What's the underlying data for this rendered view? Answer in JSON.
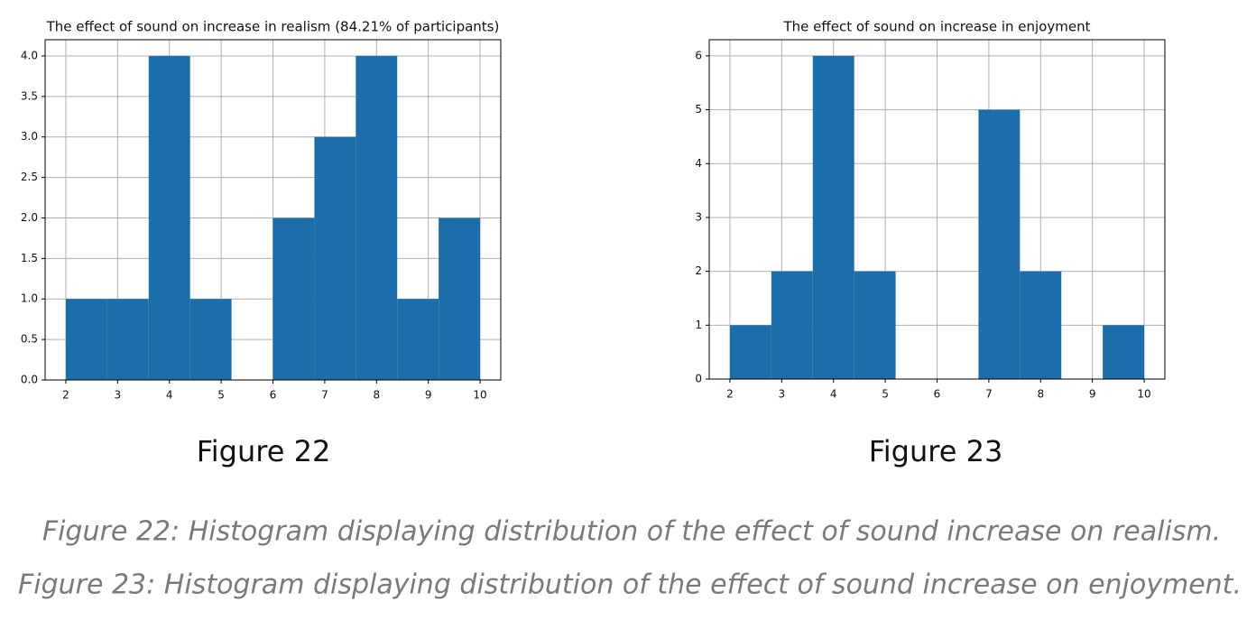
{
  "chart_data": [
    {
      "type": "histogram",
      "title": "The effect of sound on increase in realism (84.21% of participants)",
      "bins": [
        2,
        2.8,
        3.6,
        4.4,
        5.2,
        6.0,
        6.8,
        7.6,
        8.4,
        9.2,
        10
      ],
      "values": [
        1,
        1,
        4,
        1,
        0,
        2,
        3,
        4,
        1,
        2
      ],
      "color": "#1b6ea9",
      "xlim": [
        1.6,
        10.4
      ],
      "xticks": [
        2,
        3,
        4,
        5,
        6,
        7,
        8,
        9,
        10
      ],
      "ylim": [
        0,
        4.2
      ],
      "yticks": [
        {
          "value": 0,
          "label": "0.0"
        },
        {
          "value": 0.5,
          "label": "0.5"
        },
        {
          "value": 1,
          "label": "1.0"
        },
        {
          "value": 1.5,
          "label": "1.5"
        },
        {
          "value": 2,
          "label": "2.0"
        },
        {
          "value": 2.5,
          "label": "2.5"
        },
        {
          "value": 3,
          "label": "3.0"
        },
        {
          "value": 3.5,
          "label": "3.5"
        },
        {
          "value": 4,
          "label": "4.0"
        }
      ],
      "grid": true
    },
    {
      "type": "histogram",
      "title": "The effect of sound on increase in enjoyment",
      "bins": [
        2,
        2.8,
        3.6,
        4.4,
        5.2,
        6.0,
        6.8,
        7.6,
        8.4,
        9.2,
        10
      ],
      "values": [
        1,
        2,
        6,
        2,
        0,
        0,
        5,
        2,
        0,
        1
      ],
      "color": "#1b6ea9",
      "xlim": [
        1.6,
        10.4
      ],
      "xticks": [
        2,
        3,
        4,
        5,
        6,
        7,
        8,
        9,
        10
      ],
      "ylim": [
        0,
        6.3
      ],
      "yticks": [
        0,
        1,
        2,
        3,
        4,
        5,
        6
      ],
      "grid": true
    }
  ],
  "figure_labels": [
    "Figure 22",
    "Figure 23"
  ],
  "captions": [
    "Figure 22: Histogram displaying distribution of the effect of sound increase on realism.",
    "Figure 23: Histogram displaying distribution of the effect of sound increase on enjoyment."
  ]
}
